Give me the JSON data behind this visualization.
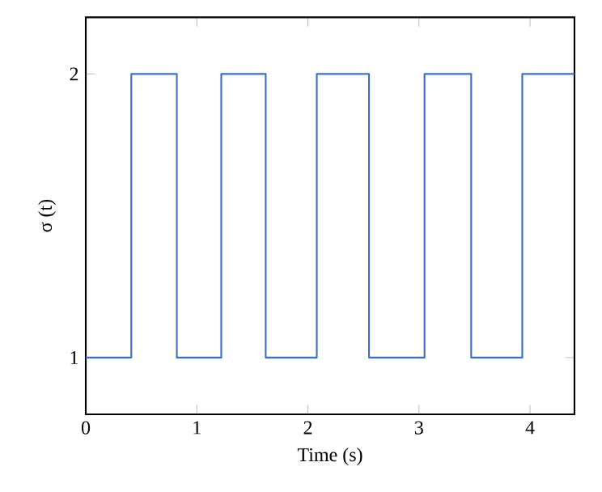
{
  "chart_data": {
    "type": "step",
    "xlabel": "Time (s)",
    "ylabel": "σ (t)",
    "x": [
      0,
      0.41,
      0.82,
      1.22,
      1.62,
      2.08,
      2.55,
      3.05,
      3.47,
      3.93,
      4.4
    ],
    "values": [
      1,
      2,
      1,
      2,
      1,
      2,
      1,
      2,
      1,
      2,
      2
    ],
    "color": "#3d6fc4",
    "xlim": [
      0,
      4.4
    ],
    "ylim": [
      0.8,
      2.2
    ],
    "xticks": [
      0,
      1,
      2,
      3,
      4
    ],
    "yticks": [
      1,
      2
    ]
  }
}
